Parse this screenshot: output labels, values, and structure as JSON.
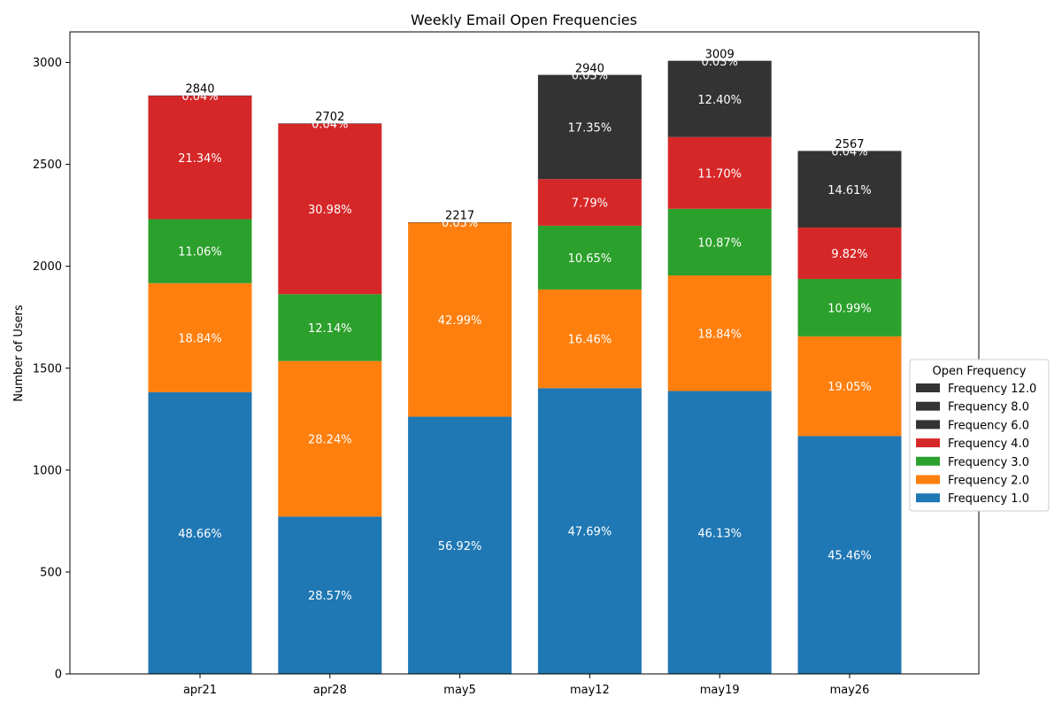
{
  "chart_data": {
    "type": "bar",
    "stacked": true,
    "title": "Weekly Email Open Frequencies",
    "xlabel": "",
    "ylabel": "Number of Users",
    "ylim": [
      0,
      3150
    ],
    "yticks": [
      0,
      500,
      1000,
      1500,
      2000,
      2500,
      3000
    ],
    "grid": false,
    "legend_title": "Open Frequency",
    "legend_position": "center-right",
    "categories": [
      "apr21",
      "apr28",
      "may5",
      "may12",
      "may19",
      "may26"
    ],
    "totals": [
      2840,
      2702,
      2217,
      2940,
      3009,
      2567
    ],
    "series": [
      {
        "name": "Frequency 1.0",
        "color": "#1f77b4",
        "values": [
          1382,
          772,
          1262,
          1402,
          1388,
          1167
        ],
        "labels": [
          "48.66%",
          "28.57%",
          "56.92%",
          "47.69%",
          "46.13%",
          "45.46%"
        ]
      },
      {
        "name": "Frequency 2.0",
        "color": "#ff7f0e",
        "values": [
          535,
          763,
          953,
          484,
          567,
          489
        ],
        "labels": [
          "18.84%",
          "28.24%",
          "42.99%",
          "16.46%",
          "18.84%",
          "19.05%"
        ]
      },
      {
        "name": "Frequency 3.0",
        "color": "#2ca02c",
        "values": [
          314,
          328,
          0,
          313,
          327,
          282
        ],
        "labels": [
          "11.06%",
          "12.14%",
          "",
          "10.65%",
          "10.87%",
          "10.99%"
        ]
      },
      {
        "name": "Frequency 4.0",
        "color": "#d62728",
        "values": [
          606,
          837,
          0,
          229,
          352,
          252
        ],
        "labels": [
          "21.34%",
          "30.98%",
          "",
          "7.79%",
          "11.70%",
          "9.82%"
        ]
      },
      {
        "name": "Frequency 6.0",
        "color": "#333333",
        "values": [
          0,
          0,
          0,
          510,
          373,
          375
        ],
        "labels": [
          "",
          "",
          "",
          "17.35%",
          "12.40%",
          "14.61%"
        ]
      },
      {
        "name": "Frequency 8.0",
        "color": "#333333",
        "values": [
          0,
          0,
          0,
          0,
          0,
          0
        ],
        "labels": [
          "",
          "",
          "",
          "",
          "",
          ""
        ]
      },
      {
        "name": "Frequency 12.0",
        "color": "#333333",
        "values": [
          1,
          1,
          1,
          1,
          1,
          1
        ],
        "labels": [
          "0.04%",
          "0.04%",
          "0.05%",
          "0.03%",
          "0.03%",
          "0.04%"
        ]
      }
    ]
  }
}
